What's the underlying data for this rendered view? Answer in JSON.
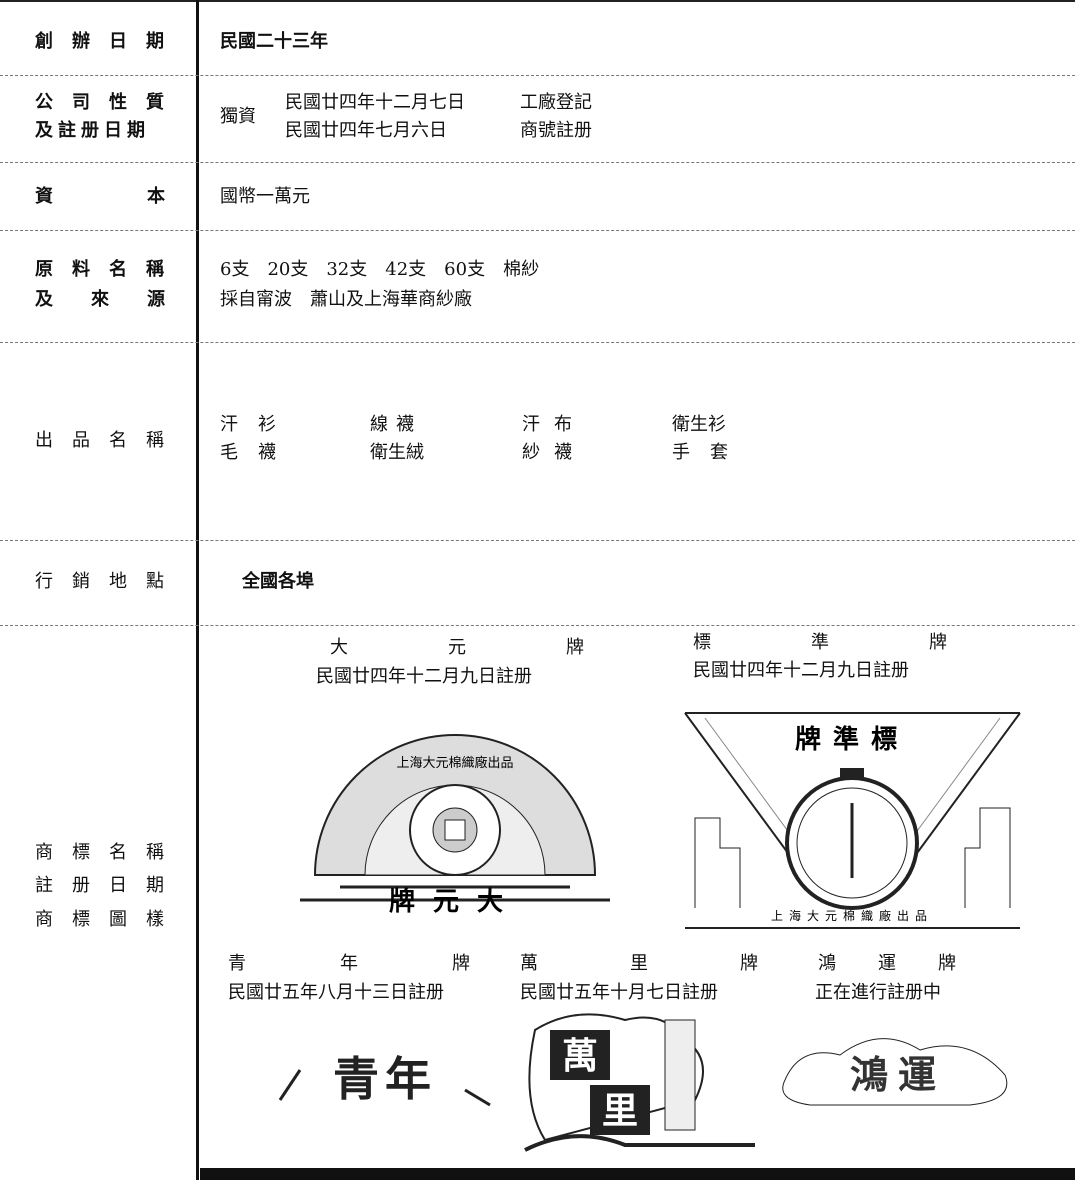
{
  "rows": [
    {
      "label": [
        "創辦日期"
      ],
      "content": [
        "民國二十三年"
      ]
    },
    {
      "label": [
        "公司性質",
        "及註册日期"
      ],
      "type": "獨資",
      "entries": [
        {
          "date": "民國廿四年十二月七日",
          "note": "工廠登記"
        },
        {
          "date": "民國廿四年七月六日",
          "note": "商號註册"
        }
      ]
    },
    {
      "label": [
        "資本"
      ],
      "content": [
        "國幣一萬元"
      ]
    },
    {
      "label": [
        "原料名稱",
        "及來源"
      ],
      "content": [
        "6支　20支　32支　42支　60支　棉紗",
        "採自甯波　蕭山及上海華商紗廠"
      ]
    },
    {
      "label": [
        "出品名稱"
      ],
      "products": [
        [
          "汗衫",
          "線襪",
          "汗布",
          "衛生衫"
        ],
        [
          "毛襪",
          "衛生絨",
          "紗襪",
          "手套"
        ]
      ]
    },
    {
      "label": [
        "行銷地點"
      ],
      "content": [
        "全國各埠"
      ]
    },
    {
      "label": [
        "商標名稱",
        "註册日期",
        "商標圖樣"
      ]
    }
  ],
  "trademarks": [
    {
      "name": "大元牌",
      "date": "民國廿四年十二月九日註册",
      "logo": [
        "上海大元棉織廠出品",
        "牌元大"
      ]
    },
    {
      "name": "標準牌",
      "date": "民國廿四年十二月九日註册",
      "logo": [
        "牌準標",
        "上海大元棉織廠出品"
      ]
    },
    {
      "name": "青年牌",
      "date": "民國廿五年八月十三日註册",
      "logo": [
        "青年"
      ]
    },
    {
      "name": "萬里牌",
      "date": "民國廿五年十月七日註册",
      "logo": [
        "萬",
        "里"
      ]
    },
    {
      "name": "鴻運牌",
      "date": "正在進行註册中",
      "logo": [
        "鴻運"
      ]
    }
  ]
}
